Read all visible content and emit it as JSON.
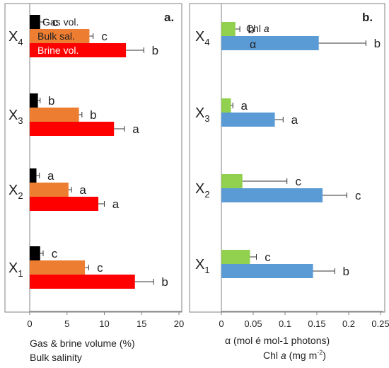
{
  "colors": {
    "gas": "#000000",
    "bulk": "#ed7d31",
    "brine": "#ff0000",
    "chl": "#92d050",
    "alpha": "#5b9bd5",
    "axis": "#808080",
    "text": "#222222"
  },
  "chart_data": [
    {
      "panel": "a.",
      "type": "bar",
      "orientation": "horizontal",
      "categories": [
        "X4",
        "X3",
        "X2",
        "X1"
      ],
      "category_labels": [
        {
          "main": "X",
          "sub": "4"
        },
        {
          "main": "X",
          "sub": "3"
        },
        {
          "main": "X",
          "sub": "2"
        },
        {
          "main": "X",
          "sub": "1"
        }
      ],
      "series": [
        {
          "name": "Gas vol.",
          "color": "#000000",
          "values": [
            1.4,
            1.1,
            0.9,
            1.4
          ],
          "errors": [
            0.5,
            0.3,
            0.4,
            0.4
          ],
          "letters": [
            "c",
            "b",
            "a",
            "c"
          ]
        },
        {
          "name": "Bulk sal.",
          "color": "#ed7d31",
          "values": [
            8.0,
            6.6,
            5.2,
            7.4
          ],
          "errors": [
            0.5,
            0.4,
            0.4,
            0.5
          ],
          "letters": [
            "c",
            "b",
            "a",
            "c"
          ]
        },
        {
          "name": "Brine vol.",
          "color": "#ff0000",
          "values": [
            12.9,
            11.3,
            9.2,
            14.1
          ],
          "errors": [
            2.4,
            1.4,
            0.8,
            2.5
          ],
          "letters": [
            "b",
            "a",
            "a",
            "b"
          ]
        }
      ],
      "xlim": [
        0,
        20
      ],
      "xticks": [
        0,
        5,
        10,
        15,
        20
      ],
      "xlabel_lines": [
        "Gas & brine volume (%)",
        "Bulk salinity"
      ]
    },
    {
      "panel": "b.",
      "type": "bar",
      "orientation": "horizontal",
      "categories": [
        "X4",
        "X3",
        "X2",
        "X1"
      ],
      "category_labels": [
        {
          "main": "X",
          "sub": "4"
        },
        {
          "main": "X",
          "sub": "3"
        },
        {
          "main": "X",
          "sub": "2"
        },
        {
          "main": "X",
          "sub": "1"
        }
      ],
      "series": [
        {
          "name": "Chl a",
          "color": "#92d050",
          "values": [
            0.022,
            0.015,
            0.033,
            0.045
          ],
          "errors": [
            0.007,
            0.003,
            0.07,
            0.01
          ],
          "letters": [
            "b",
            "a",
            "c",
            "c"
          ]
        },
        {
          "name": "α",
          "color": "#5b9bd5",
          "values": [
            0.153,
            0.084,
            0.159,
            0.144
          ],
          "errors": [
            0.074,
            0.013,
            0.038,
            0.034
          ],
          "letters": [
            "b",
            "a",
            "c",
            "b"
          ]
        }
      ],
      "xlim": [
        0,
        0.25
      ],
      "xticks": [
        "0",
        "0.05",
        "0.1",
        "0.15",
        "0.2",
        "0.25"
      ],
      "xlabel_line1": "α   (mol é mol-1 photons)",
      "xlabel_line2": {
        "pre": "Chl ",
        "italic": "a",
        "mid": "  (mg m",
        "sup": "-2",
        "post": ")"
      }
    }
  ]
}
